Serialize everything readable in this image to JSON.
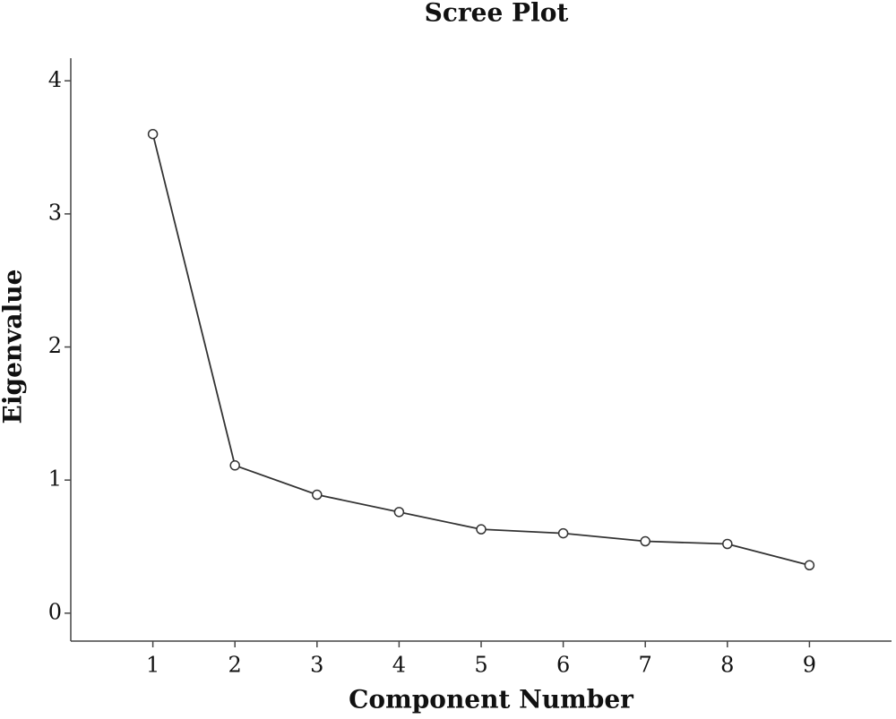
{
  "chart_data": {
    "type": "line",
    "title": "Scree Plot",
    "x_label": "Component Number",
    "y_label": "Eigenvalue",
    "x": [
      1,
      2,
      3,
      4,
      5,
      6,
      7,
      8,
      9
    ],
    "values": [
      3.6,
      1.11,
      0.89,
      0.76,
      0.63,
      0.6,
      0.54,
      0.52,
      0.36
    ],
    "color": "#333333",
    "xlim": [
      0,
      10
    ],
    "xticks": [
      1,
      2,
      3,
      4,
      5,
      6,
      7,
      8,
      9
    ],
    "ylim": [
      -0.21,
      4.17
    ],
    "yticks": [
      0,
      1,
      2,
      3,
      4
    ]
  }
}
